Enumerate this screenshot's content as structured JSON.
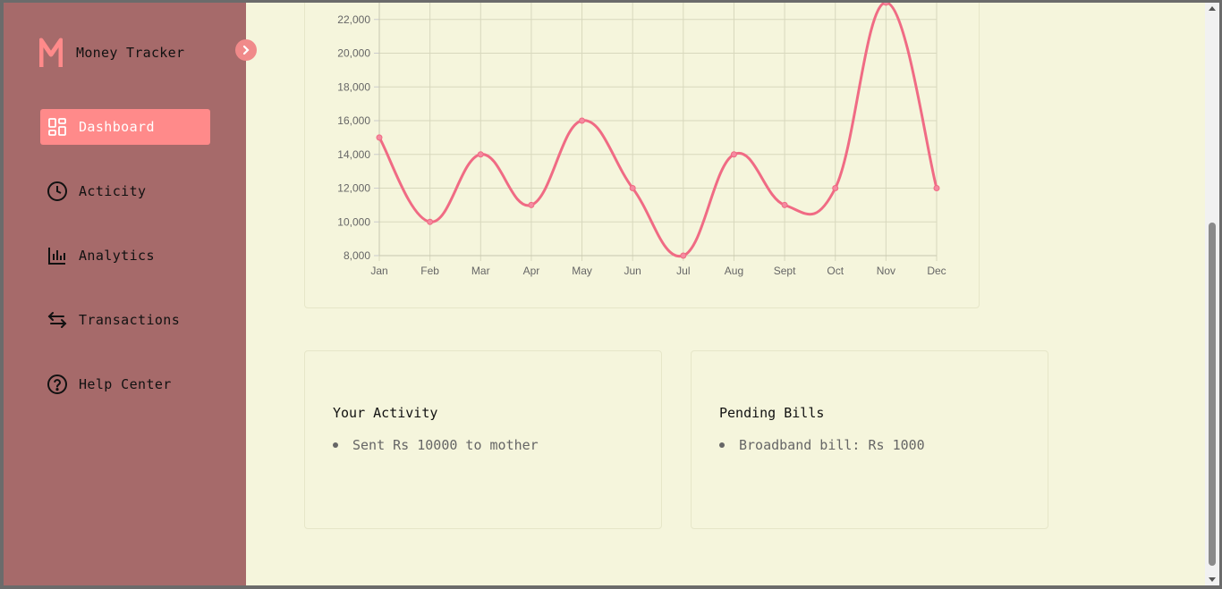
{
  "app": {
    "logo_letter": "M",
    "title": "Money Tracker"
  },
  "sidebar": {
    "items": [
      {
        "label": "Dashboard",
        "icon": "dashboard-icon",
        "active": true
      },
      {
        "label": "Acticity",
        "icon": "clock-icon",
        "active": false
      },
      {
        "label": "Analytics",
        "icon": "bar-chart-icon",
        "active": false
      },
      {
        "label": "Transactions",
        "icon": "arrows-swap-icon",
        "active": false
      },
      {
        "label": "Help Center",
        "icon": "help-circle-icon",
        "active": false
      }
    ]
  },
  "colors": {
    "sidebar_bg": "#a66a6a",
    "accent": "#ff8a8a",
    "page_bg": "#f5f5dc",
    "line": "#f06b84"
  },
  "activity": {
    "title": "Your Activity",
    "items": [
      "Sent Rs 10000 to mother"
    ]
  },
  "bills": {
    "title": "Pending Bills",
    "items": [
      "Broadband bill: Rs 1000"
    ]
  },
  "chart_data": {
    "type": "line",
    "categories": [
      "Jan",
      "Feb",
      "Mar",
      "Apr",
      "May",
      "Jun",
      "Jul",
      "Aug",
      "Sept",
      "Oct",
      "Nov",
      "Dec"
    ],
    "series": [
      {
        "values": [
          15000,
          10000,
          14000,
          11000,
          16000,
          12000,
          8000,
          14000,
          11000,
          12000,
          23000,
          12000
        ]
      }
    ],
    "y_ticks": [
      "8,000",
      "10,000",
      "12,000",
      "14,000",
      "16,000",
      "18,000",
      "20,000",
      "22,000"
    ],
    "ylim": [
      8000,
      24000
    ],
    "grid": true,
    "smooth": true
  }
}
